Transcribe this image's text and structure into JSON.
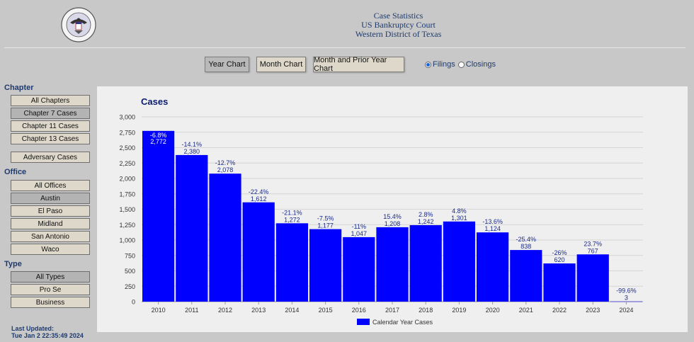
{
  "header": {
    "line1": "Case Statistics",
    "line2": "US Bankruptcy Court",
    "line3": "Western District of Texas"
  },
  "toolbar": {
    "buttons": [
      "Year Chart",
      "Month Chart",
      "Month and Prior Year Chart"
    ],
    "radio_filings": "Filings",
    "radio_closings": "Closings"
  },
  "sidebar": {
    "chapter_title": "Chapter",
    "chapters": [
      "All Chapters",
      "Chapter 7 Cases",
      "Chapter 11 Cases",
      "Chapter 13 Cases"
    ],
    "adversary": "Adversary Cases",
    "office_title": "Office",
    "offices": [
      "All Offices",
      "Austin",
      "El Paso",
      "Midland",
      "San Antonio",
      "Waco"
    ],
    "type_title": "Type",
    "types": [
      "All Types",
      "Pro Se",
      "Business"
    ]
  },
  "last_updated": {
    "label": "Last Updated:",
    "value": "Tue Jan 2 22:35:49 2024"
  },
  "chart_data": {
    "type": "bar",
    "title": "Cases",
    "xlabel": "",
    "ylabel": "",
    "categories": [
      "2010",
      "2011",
      "2012",
      "2013",
      "2014",
      "2015",
      "2016",
      "2017",
      "2018",
      "2019",
      "2020",
      "2021",
      "2022",
      "2023",
      "2024"
    ],
    "series": [
      {
        "name": "Calendar Year Cases",
        "values": [
          2772,
          2380,
          2078,
          1612,
          1272,
          1177,
          1047,
          1208,
          1242,
          1301,
          1124,
          838,
          620,
          767,
          3
        ],
        "value_labels": [
          "2,772",
          "2,380",
          "2,078",
          "1,612",
          "1,272",
          "1,177",
          "1,047",
          "1,208",
          "1,242",
          "1,301",
          "1,124",
          "838",
          "620",
          "767",
          "3"
        ],
        "pct_labels": [
          "-6.8%",
          "-14.1%",
          "-12.7%",
          "-22.4%",
          "-21.1%",
          "-7.5%",
          "-11%",
          "15.4%",
          "2.8%",
          "4.8%",
          "-13.6%",
          "-25.4%",
          "-26%",
          "23.7%",
          "-99.6%"
        ]
      }
    ],
    "ylim": [
      0,
      3000
    ],
    "yticks": [
      0,
      250,
      500,
      750,
      1000,
      1250,
      1500,
      1750,
      2000,
      2250,
      2500,
      2750,
      3000
    ],
    "ytick_labels": [
      "0",
      "250",
      "500",
      "750",
      "1,000",
      "1,250",
      "1,500",
      "1,750",
      "2,000",
      "2,250",
      "2,500",
      "2,750",
      "3,000"
    ],
    "grid": true,
    "legend": "bottom-center",
    "colors": {
      "bar": "#0000ff",
      "label": "#1a2a8a",
      "title": "#0a1a6e"
    }
  }
}
